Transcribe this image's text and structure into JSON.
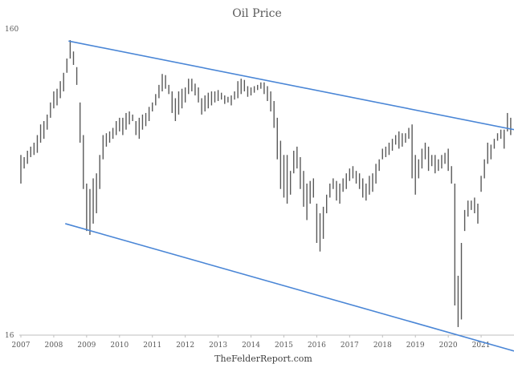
{
  "chart_data": {
    "type": "bar",
    "subtype": "monthly-range-bars",
    "title": "Oil Price",
    "y_scale": "log",
    "ylim": [
      16,
      160
    ],
    "y_tick_labels": [
      "160",
      "16"
    ],
    "xlim": [
      2007.0,
      2022.0
    ],
    "x_tick_labels": [
      "2007",
      "2008",
      "2009",
      "2010",
      "2011",
      "2012",
      "2013",
      "2014",
      "2015",
      "2016",
      "2017",
      "2018",
      "2019",
      "2020",
      "2021"
    ],
    "grid": false,
    "legend": "none",
    "footer": "TheFelderReport.com",
    "colors": {
      "bars": "#595959",
      "trendlines": "#4a86d6"
    },
    "series": [
      {
        "x": [
          2007.0,
          2007.1,
          2007.2,
          2007.3,
          2007.4,
          2007.5,
          2007.6,
          2007.7,
          2007.8,
          2007.9,
          2008.0,
          2008.1,
          2008.2,
          2008.3,
          2008.4,
          2008.5,
          2008.6,
          2008.7,
          2008.8,
          2008.9,
          2009.0,
          2009.1,
          2009.2,
          2009.3,
          2009.4,
          2009.5,
          2009.6,
          2009.7,
          2009.8,
          2009.9,
          2010.0,
          2010.1,
          2010.2,
          2010.3,
          2010.4,
          2010.5,
          2010.6,
          2010.7,
          2010.8,
          2010.9,
          2011.0,
          2011.1,
          2011.2,
          2011.3,
          2011.4,
          2011.5,
          2011.6,
          2011.7,
          2011.8,
          2011.9,
          2012.0,
          2012.1,
          2012.2,
          2012.3,
          2012.4,
          2012.5,
          2012.6,
          2012.7,
          2012.8,
          2012.9,
          2013.0,
          2013.1,
          2013.2,
          2013.3,
          2013.4,
          2013.5,
          2013.6,
          2013.7,
          2013.8,
          2013.9,
          2014.0,
          2014.1,
          2014.2,
          2014.3,
          2014.4,
          2014.5,
          2014.6,
          2014.7,
          2014.8,
          2014.9,
          2015.0,
          2015.1,
          2015.2,
          2015.3,
          2015.4,
          2015.5,
          2015.6,
          2015.7,
          2015.8,
          2015.9,
          2016.0,
          2016.1,
          2016.2,
          2016.3,
          2016.4,
          2016.5,
          2016.6,
          2016.7,
          2016.8,
          2016.9,
          2017.0,
          2017.1,
          2017.2,
          2017.3,
          2017.4,
          2017.5,
          2017.6,
          2017.7,
          2017.8,
          2017.9,
          2018.0,
          2018.1,
          2018.2,
          2018.3,
          2018.4,
          2018.5,
          2018.6,
          2018.7,
          2018.8,
          2018.9,
          2019.0,
          2019.1,
          2019.2,
          2019.3,
          2019.4,
          2019.5,
          2019.6,
          2019.7,
          2019.8,
          2019.9,
          2020.0,
          2020.1,
          2020.2,
          2020.3,
          2020.4,
          2020.5,
          2020.6,
          2020.7,
          2020.8,
          2020.9,
          2021.0,
          2021.1,
          2021.2,
          2021.3,
          2021.4,
          2021.5,
          2021.6,
          2021.7,
          2021.8,
          2021.9
        ],
        "low": [
          50,
          56,
          58,
          61,
          62,
          63,
          68,
          70,
          75,
          82,
          88,
          90,
          95,
          100,
          115,
          128,
          122,
          105,
          68,
          48,
          35,
          34,
          37,
          40,
          48,
          60,
          66,
          68,
          70,
          72,
          74,
          72,
          75,
          78,
          80,
          72,
          70,
          75,
          77,
          80,
          86,
          90,
          95,
          100,
          102,
          98,
          85,
          80,
          84,
          88,
          92,
          98,
          100,
          97,
          92,
          84,
          86,
          88,
          90,
          92,
          93,
          94,
          91,
          92,
          90,
          94,
          95,
          98,
          100,
          96,
          97,
          99,
          101,
          102,
          98,
          93,
          86,
          76,
          60,
          48,
          45,
          43,
          46,
          54,
          56,
          48,
          42,
          38,
          43,
          45,
          32,
          30,
          33,
          40,
          45,
          48,
          44,
          43,
          47,
          48,
          51,
          52,
          50,
          48,
          45,
          44,
          46,
          47,
          50,
          55,
          60,
          61,
          62,
          64,
          67,
          65,
          66,
          68,
          70,
          52,
          46,
          52,
          56,
          60,
          55,
          57,
          54,
          55,
          56,
          58,
          55,
          50,
          20,
          17,
          18,
          35,
          39,
          41,
          40,
          37,
          47,
          52,
          58,
          60,
          65,
          69,
          70,
          65,
          74,
          72
        ],
        "high": [
          62,
          61,
          64,
          66,
          68,
          72,
          78,
          80,
          84,
          92,
          100,
          102,
          108,
          115,
          128,
          147,
          135,
          120,
          92,
          72,
          50,
          48,
          52,
          54,
          62,
          72,
          73,
          74,
          76,
          80,
          82,
          82,
          85,
          86,
          84,
          80,
          82,
          84,
          85,
          89,
          92,
          98,
          105,
          114,
          113,
          105,
          100,
          95,
          100,
          102,
          103,
          110,
          110,
          106,
          103,
          95,
          97,
          99,
          100,
          100,
          101,
          99,
          97,
          96,
          97,
          100,
          108,
          110,
          109,
          104,
          103,
          104,
          105,
          107,
          107,
          104,
          100,
          93,
          82,
          69,
          62,
          62,
          55,
          64,
          66,
          61,
          55,
          50,
          51,
          52,
          43,
          40,
          42,
          46,
          50,
          52,
          51,
          50,
          52,
          54,
          56,
          57,
          55,
          54,
          52,
          50,
          53,
          54,
          58,
          60,
          65,
          66,
          68,
          70,
          72,
          74,
          73,
          73,
          76,
          78,
          62,
          60,
          65,
          68,
          66,
          62,
          62,
          60,
          62,
          63,
          65,
          57,
          50,
          25,
          32,
          41,
          44,
          44,
          45,
          43,
          53,
          60,
          68,
          67,
          70,
          73,
          75,
          75,
          85,
          82
        ]
      }
    ],
    "trendlines": [
      {
        "points": [
          [
            2008.45,
            146
          ],
          [
            2022.0,
            75
          ]
        ]
      },
      {
        "points": [
          [
            2008.35,
            37
          ],
          [
            2022.0,
            14.2
          ]
        ]
      }
    ]
  }
}
